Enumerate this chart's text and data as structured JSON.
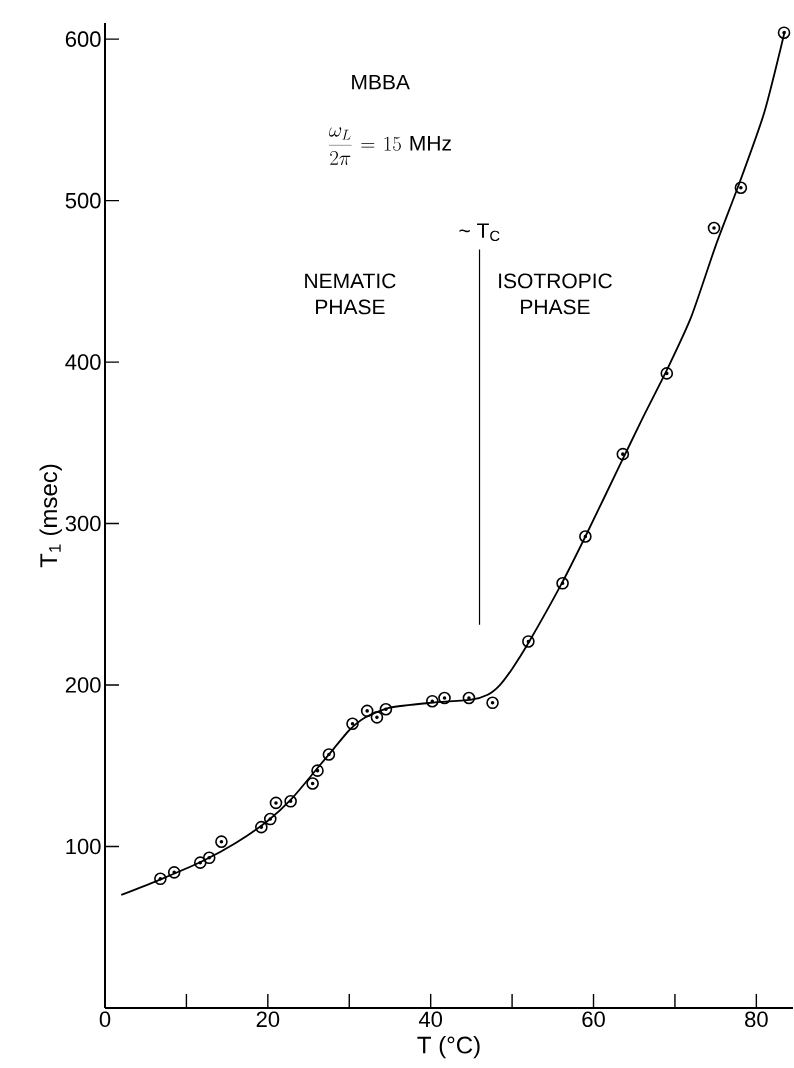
{
  "chart_data": {
    "type": "scatter",
    "xlabel": "T (°C)",
    "ylabel": "T$_{1}$ (msec)",
    "xlim": [
      0,
      84.5
    ],
    "ylim": [
      0,
      610
    ],
    "xticks": [
      0,
      {
        "value": 10,
        "label": null
      },
      20,
      {
        "value": 30,
        "label": null
      },
      40,
      {
        "value": 50,
        "label": null
      },
      60,
      {
        "value": 70,
        "label": null
      },
      80
    ],
    "yticks": [
      100,
      200,
      300,
      400,
      500,
      600
    ],
    "annotations": [
      "MBBA",
      "\\frac{\\omega_{L}}{2\\pi} = 15\\ \\mathrm{MHz}",
      "NEMATIC PHASE",
      "ISOTROPIC PHASE"
    ],
    "ref_lines": [
      {
        "axis": "x",
        "value": 46,
        "label": "~ T$_{C}$",
        "color": "#000000"
      }
    ],
    "series": [
      {
        "color": "#000000",
        "marker": "circle",
        "x": [
          6.8,
          8.5,
          11.7,
          12.8,
          14.3,
          19.2,
          20.3,
          21.0,
          22.8,
          25.5,
          26.1,
          27.5,
          30.4,
          32.2,
          33.4,
          34.5,
          40.2,
          41.7,
          44.7,
          47.6,
          52.0,
          56.2,
          59.0,
          63.6,
          69.0,
          74.8,
          78.1,
          83.4
        ],
        "values": [
          80,
          84,
          90,
          93,
          103,
          112,
          117,
          127,
          128,
          139,
          147,
          157,
          176,
          184,
          180,
          185,
          190,
          192,
          192,
          189,
          227,
          263,
          292,
          343,
          393,
          483,
          508,
          604
        ]
      },
      {
        "type": "line",
        "color": "#000000",
        "marker": "none",
        "line_style": "solid",
        "x": [
          2,
          7,
          12,
          16,
          20,
          23,
          26,
          28,
          30,
          32,
          35,
          40,
          45,
          47,
          48.5,
          50,
          52,
          56,
          59,
          63.6,
          66,
          69,
          72,
          75,
          78,
          81,
          83.5
        ],
        "values": [
          70,
          80,
          91,
          102,
          116,
          130,
          148,
          160,
          172,
          180,
          186,
          189,
          191,
          194,
          200,
          210,
          226,
          262,
          292,
          340,
          365,
          395,
          428,
          472,
          512,
          555,
          605
        ]
      }
    ]
  }
}
